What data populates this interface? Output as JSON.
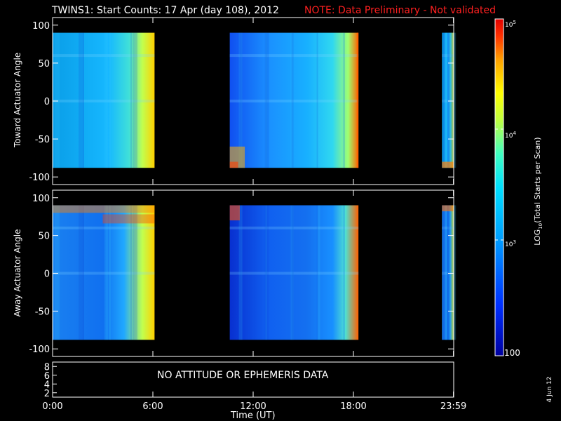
{
  "header": {
    "title": "TWINS1: Start Counts: 17 Apr (day 108), 2012",
    "note": "NOTE: Data Preliminary - Not validated",
    "note_color": "#ff2020"
  },
  "footer": {
    "date_stamp": "4 Jun 12"
  },
  "chart_data": [
    {
      "type": "heatmap",
      "ylabel": "Toward Actuator Angle",
      "ylim": [
        -110,
        110
      ],
      "yticks": [
        100,
        50,
        0,
        -50,
        -100
      ],
      "ytick_labels": [
        "100",
        "50",
        "0",
        "-50",
        "-100"
      ],
      "data_y_range": [
        -88,
        90
      ],
      "x_range_hours": [
        0,
        24
      ],
      "data_intervals_hours": [
        [
          0.0,
          6.1
        ],
        [
          10.6,
          18.3
        ],
        [
          23.3,
          24.0
        ]
      ],
      "notable_features": "low-latitude bands near +60 and 0; elevated counts (orange/red) near -70 to -88 around 11:00 and at the end of the 18:00 interval"
    },
    {
      "type": "heatmap",
      "ylabel": "Away Actuator Angle",
      "ylim": [
        -110,
        110
      ],
      "yticks": [
        100,
        50,
        0,
        -50,
        -100
      ],
      "ytick_labels": [
        "100",
        "50",
        "0",
        "-50",
        "-100"
      ],
      "data_y_range": [
        -88,
        90
      ],
      "x_range_hours": [
        0,
        24
      ],
      "data_intervals_hours": [
        [
          0.0,
          6.1
        ],
        [
          10.6,
          18.3
        ],
        [
          23.3,
          24.0
        ]
      ],
      "notable_features": "elevated counts (orange/red) near +75 to +90 in the first interval and near +90 at ~10.8 h; blue background at low angles"
    },
    {
      "type": "line",
      "yticks": [
        8,
        6,
        4,
        2
      ],
      "ytick_labels": [
        "8",
        "6",
        "4",
        "2"
      ],
      "message": "NO ATTITUDE OR EPHEMERIS DATA"
    }
  ],
  "x_axis": {
    "label": "Time (UT)",
    "ticks_hours": [
      0,
      6,
      12,
      18,
      23.983
    ],
    "tick_labels": [
      "0:00",
      "6:00",
      "12:00",
      "18:00",
      "23:59"
    ]
  },
  "colorbar": {
    "label": "LOG10(Total Starts per Scan)",
    "scale": "log",
    "range": [
      100,
      100000
    ],
    "ticks": [
      "10^5",
      "10^4",
      "10^3",
      "100"
    ],
    "min_label": "100",
    "label_base": "LOG",
    "label_sub": "10",
    "label_rest": "(Total Starts per Scan)",
    "tick_10_5": "10",
    "tick_10_4": "10",
    "tick_10_3": "10",
    "exp5": "5",
    "exp4": "4",
    "exp3": "3",
    "colors": [
      "#0000a0",
      "#0040ff",
      "#00a0ff",
      "#00e0ff",
      "#40ffc0",
      "#c0ff40",
      "#ffff00",
      "#ffa000",
      "#ff3000",
      "#e00000"
    ]
  }
}
